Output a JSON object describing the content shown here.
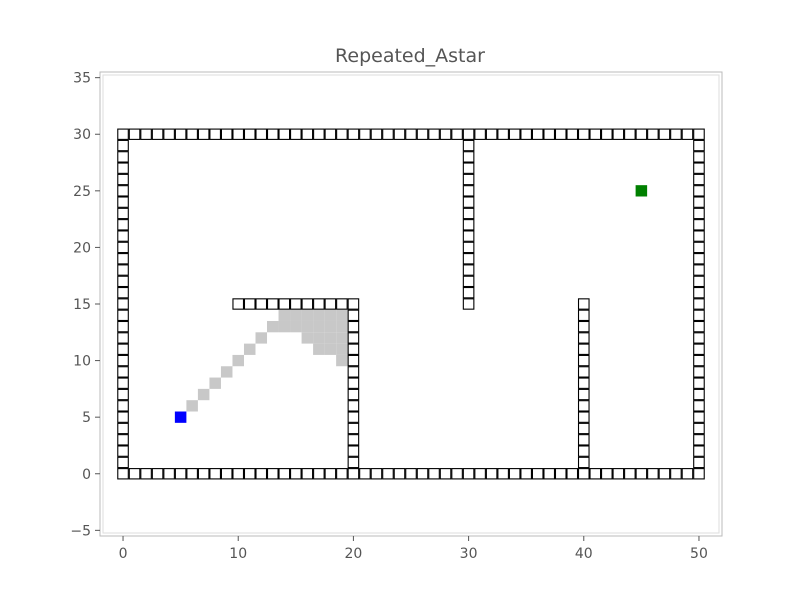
{
  "chart_data": {
    "type": "scatter",
    "title": "Repeated_Astar",
    "xlabel": "",
    "ylabel": "",
    "xlim": [
      -2,
      52
    ],
    "ylim": [
      -5.5,
      35.5
    ],
    "x_ticks": [
      0,
      10,
      20,
      30,
      40,
      50
    ],
    "x_tick_labels": [
      "0",
      "10",
      "20",
      "30",
      "40",
      "50"
    ],
    "y_ticks": [
      -5,
      0,
      5,
      10,
      15,
      20,
      25,
      30,
      35
    ],
    "y_tick_labels": [
      "−5",
      "0",
      "5",
      "10",
      "15",
      "20",
      "25",
      "30",
      "35"
    ],
    "grid": false,
    "legend": "none",
    "colors": {
      "wall": "#000000",
      "visited": "#c8c8c8",
      "start": "#0000ff",
      "goal": "#008000",
      "axes": "#bbbbbb"
    },
    "wall_segments": [
      {
        "from": [
          0,
          0
        ],
        "to": [
          50,
          0
        ]
      },
      {
        "from": [
          50,
          0
        ],
        "to": [
          50,
          30
        ]
      },
      {
        "from": [
          0,
          30
        ],
        "to": [
          50,
          30
        ]
      },
      {
        "from": [
          0,
          0
        ],
        "to": [
          0,
          30
        ]
      },
      {
        "from": [
          10,
          15
        ],
        "to": [
          20,
          15
        ]
      },
      {
        "from": [
          20,
          0
        ],
        "to": [
          20,
          15
        ]
      },
      {
        "from": [
          30,
          15
        ],
        "to": [
          30,
          30
        ]
      },
      {
        "from": [
          40,
          0
        ],
        "to": [
          40,
          15
        ]
      }
    ],
    "visited": [
      [
        6,
        6
      ],
      [
        7,
        7
      ],
      [
        8,
        8
      ],
      [
        9,
        9
      ],
      [
        10,
        10
      ],
      [
        11,
        11
      ],
      [
        12,
        12
      ],
      [
        13,
        13
      ],
      [
        14,
        14
      ],
      [
        15,
        14
      ],
      [
        16,
        14
      ],
      [
        17,
        14
      ],
      [
        18,
        14
      ],
      [
        19,
        14
      ],
      [
        14,
        13
      ],
      [
        15,
        13
      ],
      [
        16,
        13
      ],
      [
        17,
        13
      ],
      [
        18,
        13
      ],
      [
        19,
        13
      ],
      [
        16,
        12
      ],
      [
        17,
        12
      ],
      [
        18,
        12
      ],
      [
        19,
        12
      ],
      [
        17,
        11
      ],
      [
        18,
        11
      ],
      [
        19,
        11
      ],
      [
        19,
        10
      ]
    ],
    "start": [
      5,
      5
    ],
    "goal": [
      45,
      25
    ]
  }
}
